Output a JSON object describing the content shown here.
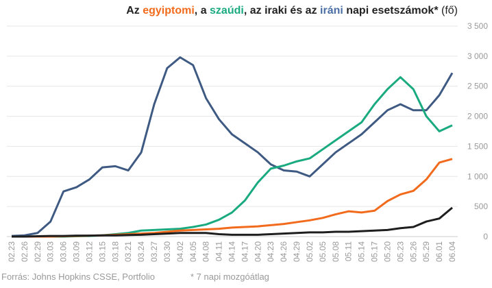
{
  "chart_data": {
    "type": "line",
    "title_parts": [
      {
        "text": "Az ",
        "color": "#222222",
        "bold": true
      },
      {
        "text": "egyiptomi",
        "color": "#f26a1b",
        "bold": true
      },
      {
        "text": ", a ",
        "color": "#222222",
        "bold": true
      },
      {
        "text": "szaúdi",
        "color": "#1aaa80",
        "bold": true
      },
      {
        "text": ", az iraki és az ",
        "color": "#222222",
        "bold": true
      },
      {
        "text": "iráni",
        "color": "#4a6ea5",
        "bold": true
      },
      {
        "text": " napi esetszámok*",
        "color": "#222222",
        "bold": true
      },
      {
        "text": " (fő)",
        "color": "#222222",
        "bold": false
      }
    ],
    "source": "Forrás: Johns Hopkins CSSE, Portfolio",
    "note": "* 7 napi mozgóátlag",
    "categories": [
      "02.23",
      "02.26",
      "02.29",
      "03.03",
      "03.06",
      "03.09",
      "03.12",
      "03.15",
      "03.18",
      "03.21",
      "03.24",
      "03.27",
      "03.30",
      "04.02",
      "04.05",
      "04.08",
      "04.11",
      "04.14",
      "04.17",
      "04.20",
      "04.23",
      "04.26",
      "04.29",
      "05.02",
      "05.05",
      "05.08",
      "05.11",
      "05.14",
      "05.17",
      "05.20",
      "05.23",
      "05.26",
      "05.29",
      "06.01",
      "06.04"
    ],
    "series": [
      {
        "color": "#3e5a83",
        "values": [
          10,
          20,
          60,
          250,
          750,
          820,
          950,
          1150,
          1170,
          1100,
          1400,
          2200,
          2800,
          2980,
          2850,
          2300,
          1950,
          1700,
          1550,
          1400,
          1200,
          1100,
          1080,
          1000,
          1200,
          1400,
          1550,
          1700,
          1900,
          2100,
          2200,
          2100,
          2100,
          2350,
          2720
        ]
      },
      {
        "color": "#1aaa80",
        "values": [
          0,
          0,
          0,
          0,
          0,
          5,
          10,
          20,
          40,
          60,
          100,
          110,
          120,
          130,
          160,
          200,
          280,
          400,
          600,
          900,
          1130,
          1180,
          1250,
          1300,
          1450,
          1600,
          1750,
          1900,
          2200,
          2450,
          2650,
          2450,
          2000,
          1750,
          1850
        ]
      },
      {
        "color": "#f26a1b",
        "values": [
          0,
          0,
          0,
          0,
          5,
          10,
          15,
          20,
          30,
          40,
          50,
          60,
          80,
          100,
          110,
          120,
          130,
          150,
          160,
          170,
          190,
          210,
          240,
          270,
          310,
          370,
          420,
          400,
          430,
          590,
          700,
          760,
          950,
          1230,
          1290
        ]
      },
      {
        "color": "#1e1e1e",
        "values": [
          0,
          0,
          5,
          10,
          10,
          15,
          15,
          20,
          20,
          25,
          30,
          40,
          50,
          60,
          60,
          60,
          40,
          30,
          30,
          30,
          40,
          50,
          60,
          70,
          70,
          80,
          80,
          90,
          100,
          110,
          140,
          160,
          250,
          300,
          480
        ]
      }
    ],
    "ylim": [
      0,
      3500
    ],
    "yticks": [
      0,
      {
        "value": 500,
        "label": "500"
      },
      {
        "value": 1000,
        "label": "1 000"
      },
      {
        "value": 1500,
        "label": "1 500"
      },
      {
        "value": 2000,
        "label": "2 000"
      },
      {
        "value": 2500,
        "label": "2 500"
      },
      {
        "value": 3000,
        "label": "3 000"
      },
      {
        "value": 3500,
        "label": "3 500"
      }
    ],
    "grid": true
  }
}
